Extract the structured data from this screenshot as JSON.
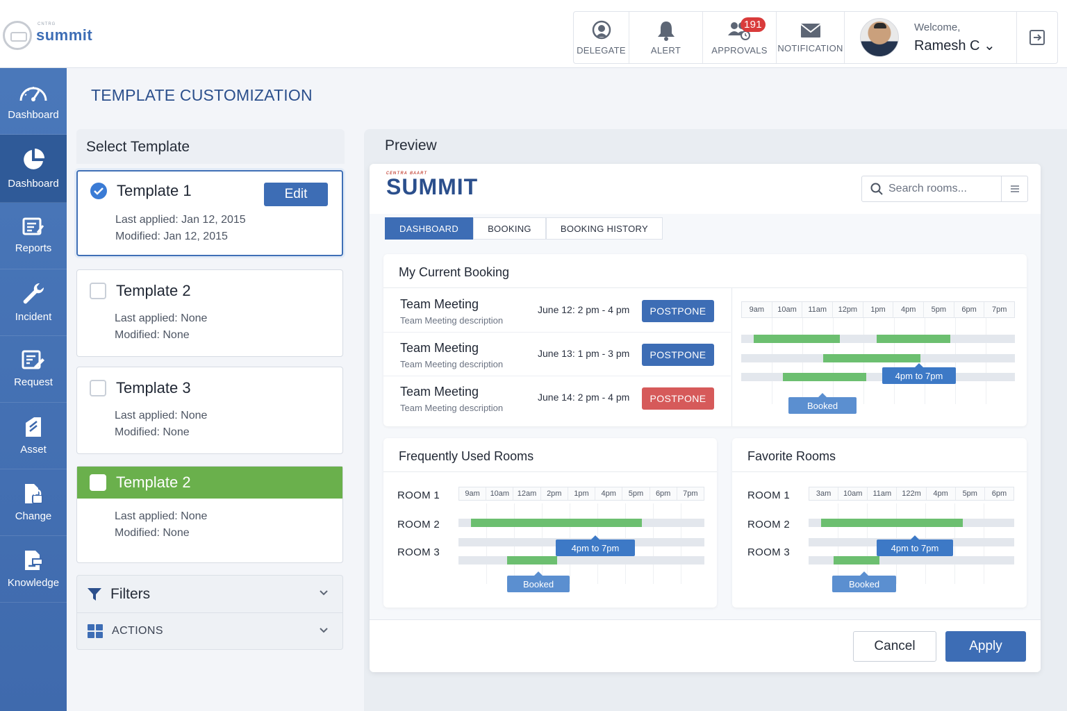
{
  "app": {
    "logo_small": "CNTRG",
    "logo_word": "summit"
  },
  "topnav": {
    "delegate": "DELEGATE",
    "alert": "ALERT",
    "approvals": "APPROVALS",
    "approvals_count": "191",
    "notification": "NOTIFICATION",
    "welcome": "Welcome,",
    "user_name": "Ramesh C ⌄"
  },
  "sidebar": {
    "items": [
      {
        "label": "Dashboard",
        "icon": "speedometer-icon"
      },
      {
        "label": "Dashboard",
        "icon": "pie-chart-icon"
      },
      {
        "label": "Reports",
        "icon": "reports-icon"
      },
      {
        "label": "Incident",
        "icon": "wrench-icon"
      },
      {
        "label": "Request",
        "icon": "edit-form-icon"
      },
      {
        "label": "Asset",
        "icon": "asset-icon"
      },
      {
        "label": "Change",
        "icon": "document-lock-icon"
      },
      {
        "label": "Knowledge",
        "icon": "knowledge-icon"
      }
    ]
  },
  "page": {
    "title": "TEMPLATE CUSTOMIZATION"
  },
  "select_template": {
    "title": "Select Template",
    "edit_label": "Edit",
    "templates": [
      {
        "name": "Template 1",
        "last_applied": "Last applied: Jan 12, 2015",
        "modified": "Modified: Jan 12, 2015"
      },
      {
        "name": "Template 2",
        "last_applied": "Last applied: None",
        "modified": "Modified: None"
      },
      {
        "name": "Template 3",
        "last_applied": "Last applied: None",
        "modified": "Modified: None"
      },
      {
        "name": "Template 2",
        "last_applied": "Last applied: None",
        "modified": "Modified: None"
      }
    ],
    "filters_label": "Filters",
    "actions_label": "ACTIONS"
  },
  "preview": {
    "title": "Preview",
    "logo_tag": "ᴄᴇɴᴛʀᴀ ʙᴀᴀʀᴛ",
    "logo_word": "SUMMIT",
    "search_placeholder": "Search rooms...",
    "tabs": [
      "DASHBOARD",
      "BOOKING",
      "BOOKING HISTORY"
    ],
    "current_booking": {
      "title": "My Current Booking",
      "rows": [
        {
          "title": "Team Meeting",
          "desc": "Team Meeting description",
          "date": "June 12: 2 pm - 4 pm",
          "action": "POSTPONE"
        },
        {
          "title": "Team Meeting",
          "desc": "Team Meeting description",
          "date": "June 13: 1 pm - 3 pm",
          "action": "POSTPONE"
        },
        {
          "title": "Team Meeting",
          "desc": "Team Meeting description",
          "date": "June 14: 2 pm - 4 pm",
          "action": "POSTPONE"
        }
      ],
      "ticks": [
        "9am",
        "10am",
        "11am",
        "12pm",
        "1pm",
        "4pm",
        "5pm",
        "6pm",
        "7pm"
      ],
      "tip_time": "4pm to 7pm",
      "tip_booked": "Booked"
    },
    "frequent_rooms": {
      "title": "Frequently Used Rooms",
      "rooms": [
        "ROOM 1",
        "ROOM 2",
        "ROOM 3"
      ],
      "ticks": [
        "9am",
        "10am",
        "12am",
        "2pm",
        "1pm",
        "4pm",
        "5pm",
        "6pm",
        "7pm"
      ],
      "tip_time": "4pm to 7pm",
      "tip_booked": "Booked"
    },
    "favorite_rooms": {
      "title": "Favorite Rooms",
      "rooms": [
        "ROOM 1",
        "ROOM 2",
        "ROOM 3"
      ],
      "ticks": [
        "3am",
        "10am",
        "11am",
        "122m",
        "4pm",
        "5pm",
        "6pm"
      ],
      "tip_time": "4pm to 7pm",
      "tip_booked": "Booked"
    },
    "cancel_label": "Cancel",
    "apply_label": "Apply"
  },
  "colors": {
    "brand_blue": "#3d6db5",
    "sidebar_active": "#2f5a98",
    "selected_green": "#6ab04c",
    "booked_bar": "#6cbf70",
    "danger": "#d65a5a"
  }
}
